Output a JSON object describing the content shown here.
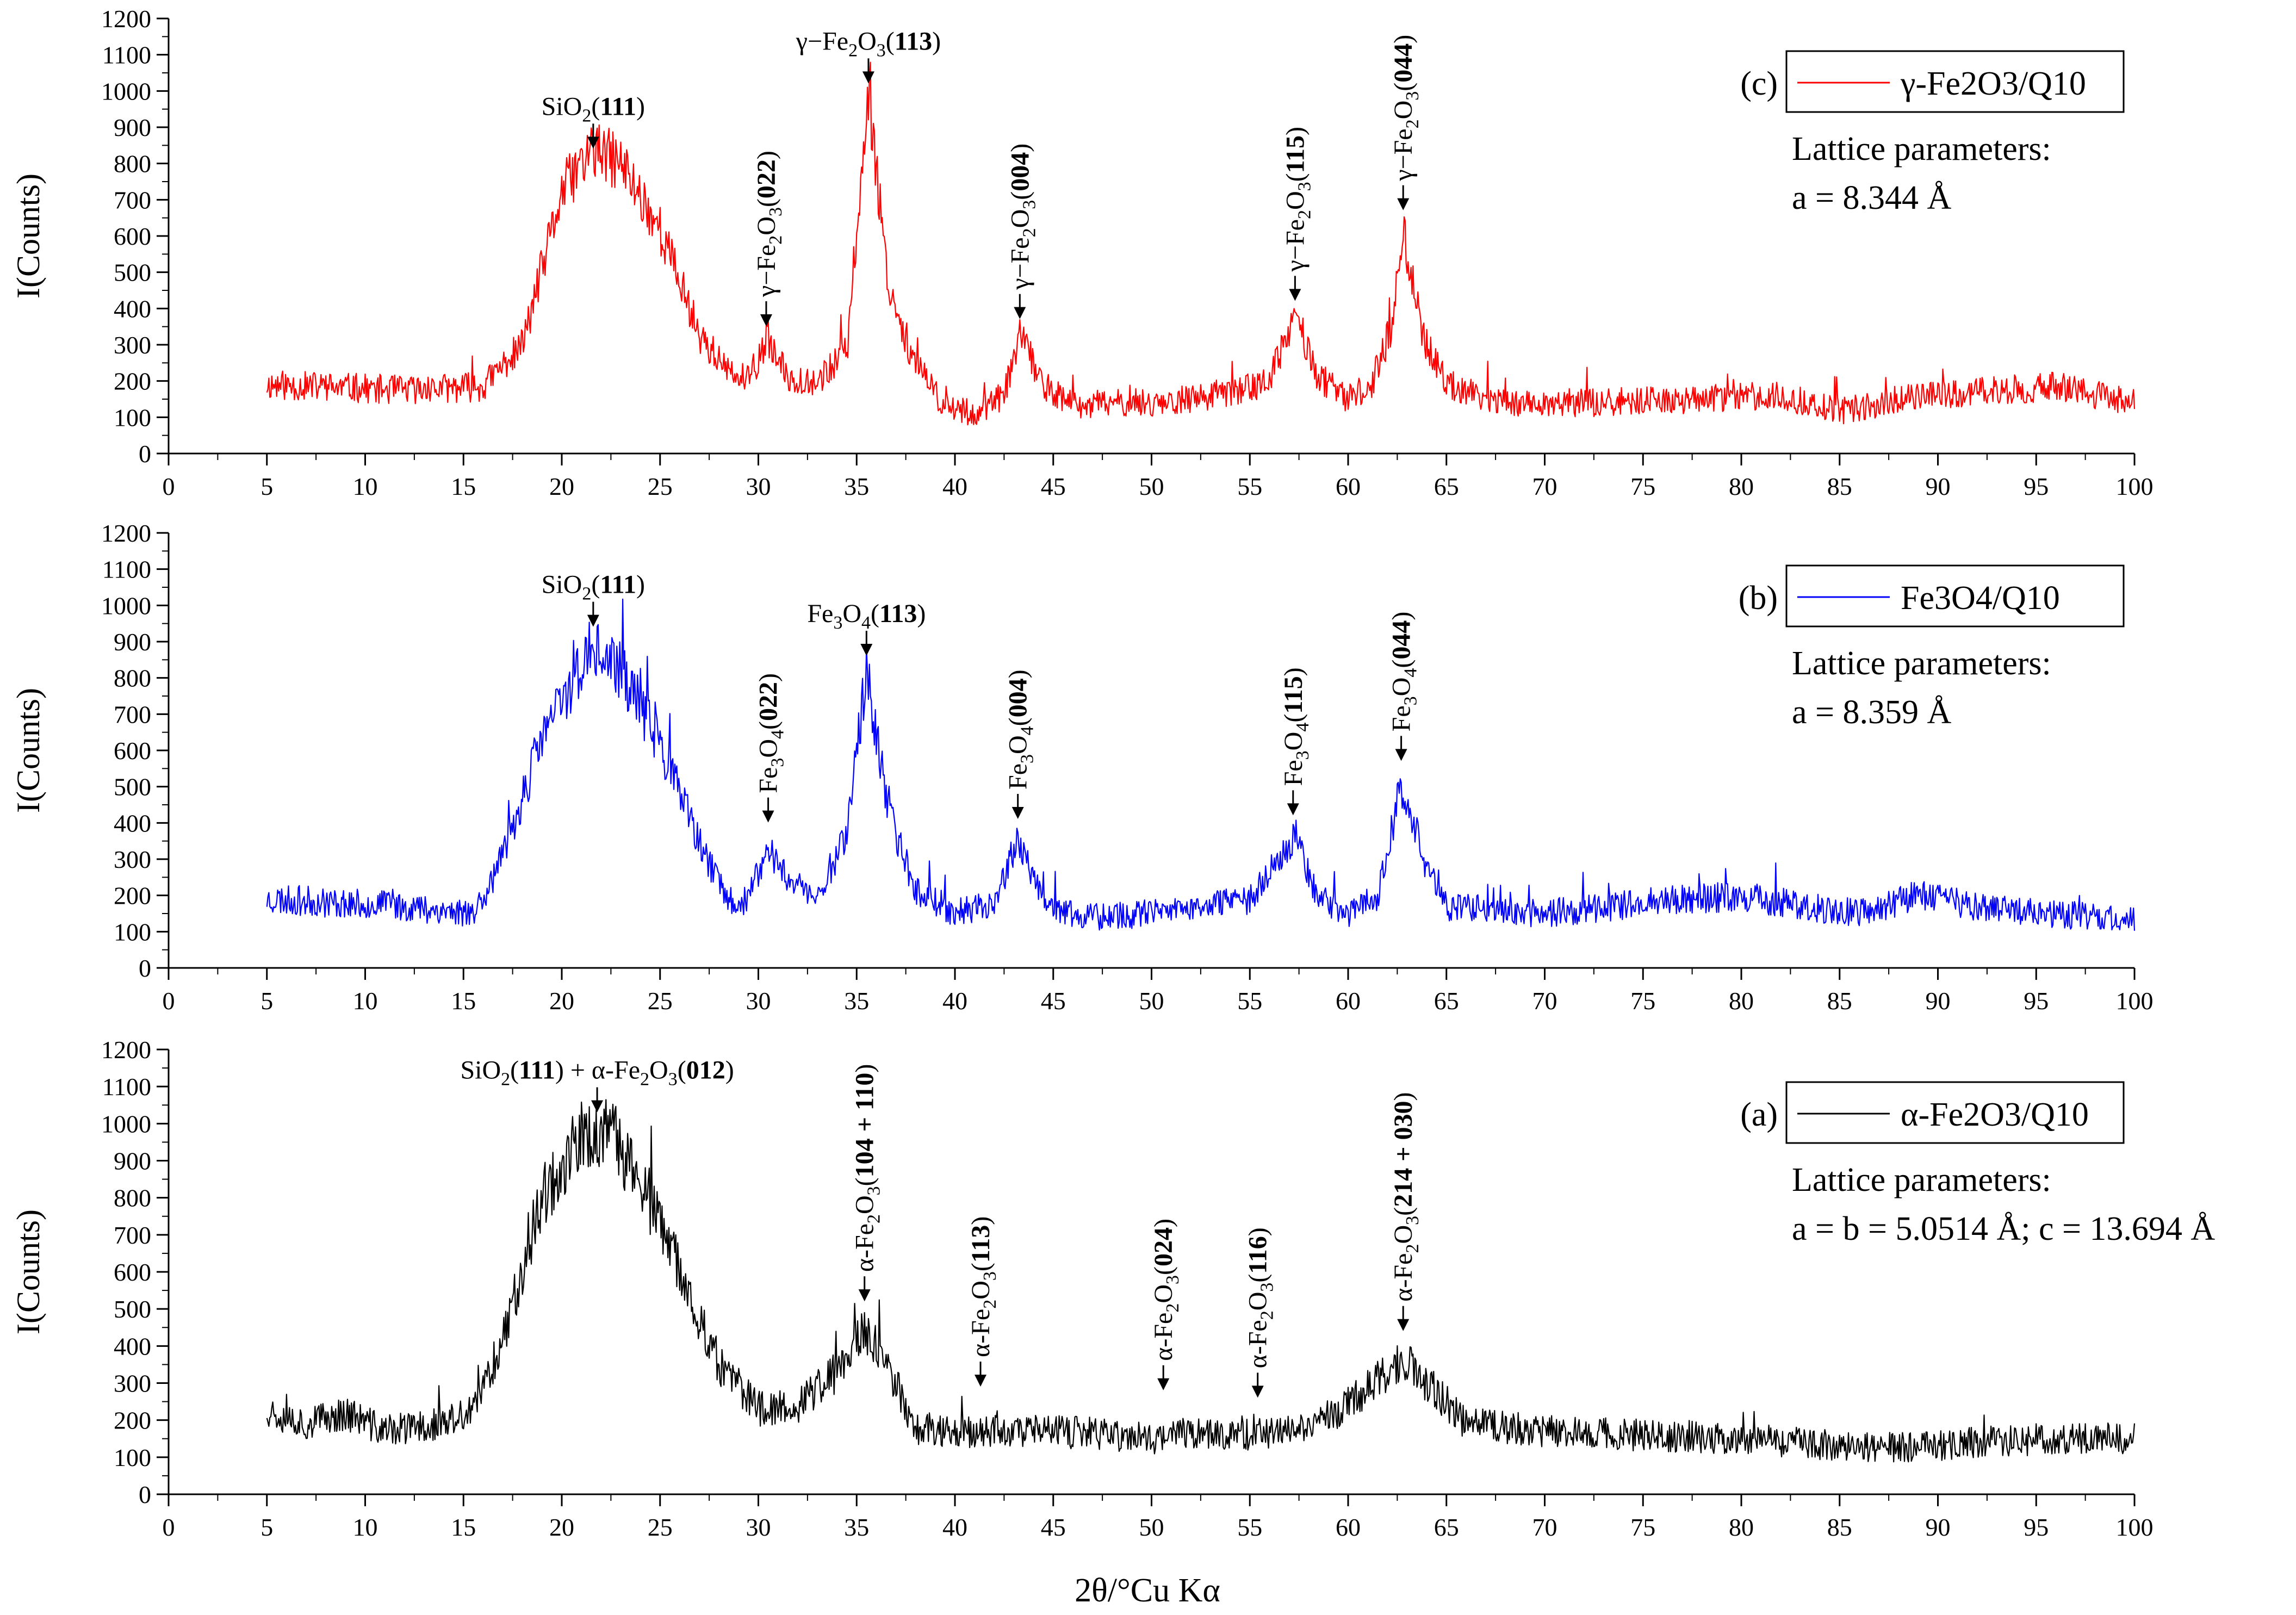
{
  "chart_data": {
    "type": "line",
    "xlabel": "2θ/°Cu Kα",
    "xlim": [
      0,
      100
    ],
    "xticks": [
      0,
      5,
      10,
      15,
      20,
      25,
      30,
      35,
      40,
      45,
      50,
      55,
      60,
      65,
      70,
      75,
      80,
      85,
      90,
      95,
      100
    ],
    "panels": [
      {
        "id": "c",
        "tag": "(c)",
        "series_name": "γ-Fe2O3/Q10",
        "color": "#ff0000",
        "ylabel": "I(Counts)",
        "ylim": [
          0,
          1200
        ],
        "yticks": [
          0,
          100,
          200,
          300,
          400,
          500,
          600,
          700,
          800,
          900,
          1000,
          1100,
          1200
        ],
        "lattice_title": "Lattice parameters:",
        "lattice_value": "a = 8.344 Å",
        "baseline": [
          [
            5,
            190
          ],
          [
            12,
            175
          ],
          [
            16,
            185
          ],
          [
            18,
            300
          ],
          [
            20,
            720
          ],
          [
            21.5,
            840
          ],
          [
            23,
            800
          ],
          [
            25,
            620
          ],
          [
            27,
            330
          ],
          [
            28.5,
            220
          ],
          [
            29.5,
            200
          ],
          [
            30.4,
            310
          ],
          [
            31.5,
            210
          ],
          [
            33,
            200
          ],
          [
            34.5,
            280
          ],
          [
            35.6,
            1000
          ],
          [
            36.6,
            470
          ],
          [
            38,
            240
          ],
          [
            39.5,
            130
          ],
          [
            41,
            110
          ],
          [
            42.5,
            160
          ],
          [
            43.3,
            330
          ],
          [
            44.5,
            190
          ],
          [
            46,
            130
          ],
          [
            48,
            140
          ],
          [
            50,
            140
          ],
          [
            52,
            150
          ],
          [
            54,
            170
          ],
          [
            56,
            200
          ],
          [
            57.3,
            380
          ],
          [
            58.5,
            210
          ],
          [
            60,
            150
          ],
          [
            61.2,
            190
          ],
          [
            62.2,
            350
          ],
          [
            62.8,
            620
          ],
          [
            63.8,
            320
          ],
          [
            65,
            190
          ],
          [
            68,
            140
          ],
          [
            72,
            140
          ],
          [
            78,
            150
          ],
          [
            82,
            160
          ],
          [
            85,
            115
          ],
          [
            88,
            150
          ],
          [
            92,
            170
          ],
          [
            96,
            185
          ],
          [
            100,
            140
          ]
        ],
        "noise": 50,
        "seed": 11,
        "annotations": [
          {
            "x": 21.6,
            "label": "SiO2(111)",
            "orient": "h",
            "peak": 820,
            "base": "SiO",
            "sub": "2",
            "pre": "",
            "post": "",
            "bold": "111"
          },
          {
            "x": 30.4,
            "label": "γ-Fe2O3(022)",
            "orient": "v",
            "peak": 330,
            "pre": "γ−Fe",
            "bold": "022"
          },
          {
            "x": 35.6,
            "label": "γ-Fe2O3(113)",
            "orient": "h",
            "peak": 1000,
            "pre": "γ−Fe",
            "bold": "113"
          },
          {
            "x": 43.3,
            "label": "γ-Fe2O3(004)",
            "orient": "v",
            "peak": 350,
            "pre": "γ−Fe",
            "bold": "004"
          },
          {
            "x": 57.3,
            "label": "γ-Fe2O3(115)",
            "orient": "v",
            "peak": 400,
            "pre": "γ−Fe",
            "bold": "115"
          },
          {
            "x": 62.8,
            "label": "γ-Fe2O3(044)",
            "orient": "v",
            "peak": 650,
            "pre": "γ−Fe",
            "bold": "044"
          }
        ]
      },
      {
        "id": "b",
        "tag": "(b)",
        "series_name": "Fe3O4/Q10",
        "color": "#0000ff",
        "ylabel": "I(Counts)",
        "ylim": [
          0,
          1200
        ],
        "yticks": [
          0,
          100,
          200,
          300,
          400,
          500,
          600,
          700,
          800,
          900,
          1000,
          1100,
          1200
        ],
        "lattice_title": "Lattice parameters:",
        "lattice_value": "a = 8.359 Å",
        "baseline": [
          [
            5,
            190
          ],
          [
            12,
            170
          ],
          [
            15.5,
            150
          ],
          [
            17,
            300
          ],
          [
            19,
            640
          ],
          [
            21.5,
            880
          ],
          [
            23,
            820
          ],
          [
            25,
            620
          ],
          [
            27,
            340
          ],
          [
            28.5,
            180
          ],
          [
            29.5,
            190
          ],
          [
            30.5,
            330
          ],
          [
            31.5,
            250
          ],
          [
            33,
            190
          ],
          [
            34.5,
            380
          ],
          [
            35.5,
            820
          ],
          [
            36.6,
            430
          ],
          [
            38,
            220
          ],
          [
            40,
            150
          ],
          [
            42,
            180
          ],
          [
            43.2,
            360
          ],
          [
            44.5,
            170
          ],
          [
            47,
            140
          ],
          [
            50,
            150
          ],
          [
            53,
            170
          ],
          [
            55,
            190
          ],
          [
            57.3,
            370
          ],
          [
            58.5,
            190
          ],
          [
            60,
            150
          ],
          [
            61.5,
            200
          ],
          [
            62.7,
            500
          ],
          [
            63.8,
            310
          ],
          [
            65,
            170
          ],
          [
            70,
            150
          ],
          [
            75,
            180
          ],
          [
            80,
            200
          ],
          [
            83,
            170
          ],
          [
            86,
            150
          ],
          [
            89,
            200
          ],
          [
            92,
            170
          ],
          [
            96,
            150
          ],
          [
            100,
            130
          ]
        ],
        "noise": 50,
        "seed": 23,
        "annotations": [
          {
            "x": 21.6,
            "label": "SiO2(111)",
            "orient": "h",
            "peak": 920,
            "base": "SiO",
            "sub": "2",
            "pre": "",
            "post": "",
            "bold": "111"
          },
          {
            "x": 30.5,
            "label": "Fe3O4(022)",
            "orient": "v",
            "peak": 380,
            "pre": "Fe",
            "bold": "022"
          },
          {
            "x": 35.5,
            "label": "Fe3O4(113)",
            "orient": "h",
            "peak": 840,
            "pre": "Fe",
            "bold": "113"
          },
          {
            "x": 43.2,
            "label": "Fe3O4(004)",
            "orient": "v",
            "peak": 390,
            "pre": "Fe",
            "bold": "004"
          },
          {
            "x": 57.2,
            "label": "Fe3O4(115)",
            "orient": "v",
            "peak": 400,
            "pre": "Fe",
            "bold": "115"
          },
          {
            "x": 62.7,
            "label": "Fe3O4(044)",
            "orient": "v",
            "peak": 550,
            "pre": "Fe",
            "bold": "044"
          }
        ]
      },
      {
        "id": "a",
        "tag": "(a)",
        "series_name": "α-Fe2O3/Q10",
        "color": "#000000",
        "ylabel": "I(Counts)",
        "ylim": [
          0,
          1200
        ],
        "yticks": [
          0,
          100,
          200,
          300,
          400,
          500,
          600,
          700,
          800,
          900,
          1000,
          1100,
          1200
        ],
        "lattice_title": "Lattice parameters:",
        "lattice_value": "a = b = 5.0514 Å; c = 13.694 Å",
        "baseline": [
          [
            5,
            230
          ],
          [
            7,
            190
          ],
          [
            9,
            220
          ],
          [
            11,
            170
          ],
          [
            14,
            190
          ],
          [
            15.5,
            220
          ],
          [
            17,
            420
          ],
          [
            19,
            800
          ],
          [
            21,
            960
          ],
          [
            22.5,
            970
          ],
          [
            24,
            850
          ],
          [
            26,
            600
          ],
          [
            28,
            350
          ],
          [
            30,
            230
          ],
          [
            32,
            240
          ],
          [
            34,
            330
          ],
          [
            35.4,
            440
          ],
          [
            36.4,
            360
          ],
          [
            38,
            180
          ],
          [
            40,
            170
          ],
          [
            42,
            170
          ],
          [
            45,
            170
          ],
          [
            48,
            160
          ],
          [
            50,
            150
          ],
          [
            52,
            170
          ],
          [
            55,
            160
          ],
          [
            58,
            180
          ],
          [
            60,
            240
          ],
          [
            62,
            330
          ],
          [
            62.8,
            360
          ],
          [
            64,
            300
          ],
          [
            66,
            190
          ],
          [
            70,
            170
          ],
          [
            75,
            160
          ],
          [
            80,
            150
          ],
          [
            85,
            130
          ],
          [
            88,
            125
          ],
          [
            92,
            140
          ],
          [
            96,
            150
          ],
          [
            100,
            150
          ]
        ],
        "noise": 55,
        "seed": 37,
        "annotations": [
          {
            "x": 21.8,
            "label": "SiO2(111) + α-Fe2O3(012)",
            "orient": "combo",
            "peak": 1010
          },
          {
            "x": 35.4,
            "label": "α-Fe2O3(104 + 110)",
            "orient": "v",
            "peak": 500,
            "pre": "α-Fe",
            "bold": "104 + 110"
          },
          {
            "x": 41.3,
            "label": "α-Fe2O3(113)",
            "orient": "v",
            "peak": 270,
            "pre": "α-Fe",
            "bold": "113"
          },
          {
            "x": 50.6,
            "label": "α-Fe2O3(024)",
            "orient": "v",
            "peak": 260,
            "pre": "α-Fe",
            "bold": "024"
          },
          {
            "x": 55.4,
            "label": "α-Fe2O3(116)",
            "orient": "v",
            "peak": 240,
            "pre": "α-Fe",
            "bold": "116"
          },
          {
            "x": 62.8,
            "label": "α-Fe2O3(214 + 030)",
            "orient": "v",
            "peak": 420,
            "pre": "α-Fe",
            "bold": "214 + 030"
          }
        ]
      }
    ]
  }
}
